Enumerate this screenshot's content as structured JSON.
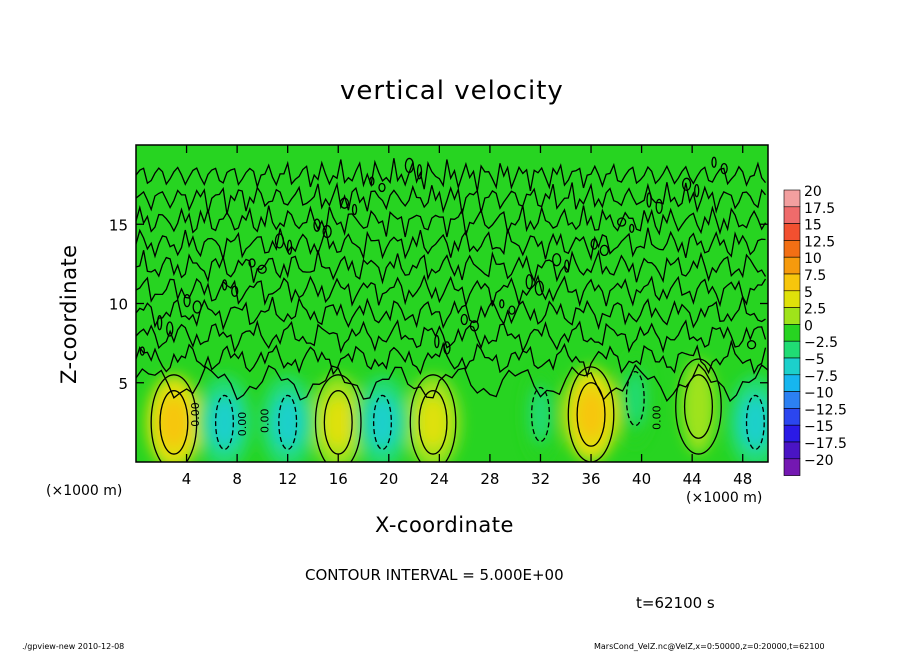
{
  "chart_data": {
    "type": "heatmap",
    "title": "vertical velocity",
    "xlabel": "X-coordinate",
    "ylabel": "Z-coordinate",
    "x_unit_left": "(×1000 m)",
    "x_unit_right": "(×1000 m)",
    "xlim": [
      0,
      50
    ],
    "ylim": [
      0,
      20
    ],
    "xticks": [
      4,
      8,
      12,
      16,
      20,
      24,
      28,
      32,
      36,
      40,
      44,
      48
    ],
    "yticks": [
      5,
      10,
      15
    ],
    "colorbar": {
      "levels": [
        20,
        17.5,
        15,
        12.5,
        10,
        7.5,
        5,
        2.5,
        0,
        -2.5,
        -5,
        -7.5,
        -10,
        -12.5,
        -15,
        -17.5,
        -20
      ],
      "labels": [
        "20",
        "17.5",
        "15",
        "12.5",
        "10",
        "7.5",
        "5",
        "2.5",
        "0",
        "−2.5",
        "−5",
        "−7.5",
        "−10",
        "−12.5",
        "−15",
        "−17.5",
        "−20"
      ],
      "colors": [
        "#f29f9f",
        "#ef6b6b",
        "#f25030",
        "#f26f14",
        "#f69a0d",
        "#f7c60c",
        "#dfe10a",
        "#9fe31a",
        "#27d421",
        "#20dc74",
        "#1cd0cb",
        "#16b6ef",
        "#2c80f2",
        "#2b46ef",
        "#2a1ae6",
        "#4a14c4",
        "#7418b2"
      ]
    },
    "updraft_cores": [
      {
        "x": 3.0,
        "z": 2.5,
        "value": 7.5
      },
      {
        "x": 16.0,
        "z": 2.5,
        "value": 5.0
      },
      {
        "x": 23.5,
        "z": 2.5,
        "value": 5.0
      },
      {
        "x": 36.0,
        "z": 3.0,
        "value": 7.5
      },
      {
        "x": 44.5,
        "z": 3.5,
        "value": 2.5
      }
    ],
    "downdraft_cores": [
      {
        "x": 7.0,
        "z": 2.5,
        "value": -5.0
      },
      {
        "x": 12.0,
        "z": 2.5,
        "value": -5.0
      },
      {
        "x": 19.5,
        "z": 2.5,
        "value": -5.0
      },
      {
        "x": 32.0,
        "z": 3.0,
        "value": -2.5
      },
      {
        "x": 39.5,
        "z": 4.0,
        "value": -2.5
      },
      {
        "x": 49.0,
        "z": 2.5,
        "value": -5.0
      }
    ],
    "contour_labels": [
      "0.00",
      "0.00",
      "0.00",
      "0.00"
    ],
    "contour_interval": "CONTOUR INTERVAL = 5.000E+00",
    "time": "t=62100 s"
  },
  "footer_left": "./gpview-new  2010-12-08",
  "footer_right": "MarsCond_VelZ.nc@VelZ,x=0:50000,z=0:20000,t=62100"
}
